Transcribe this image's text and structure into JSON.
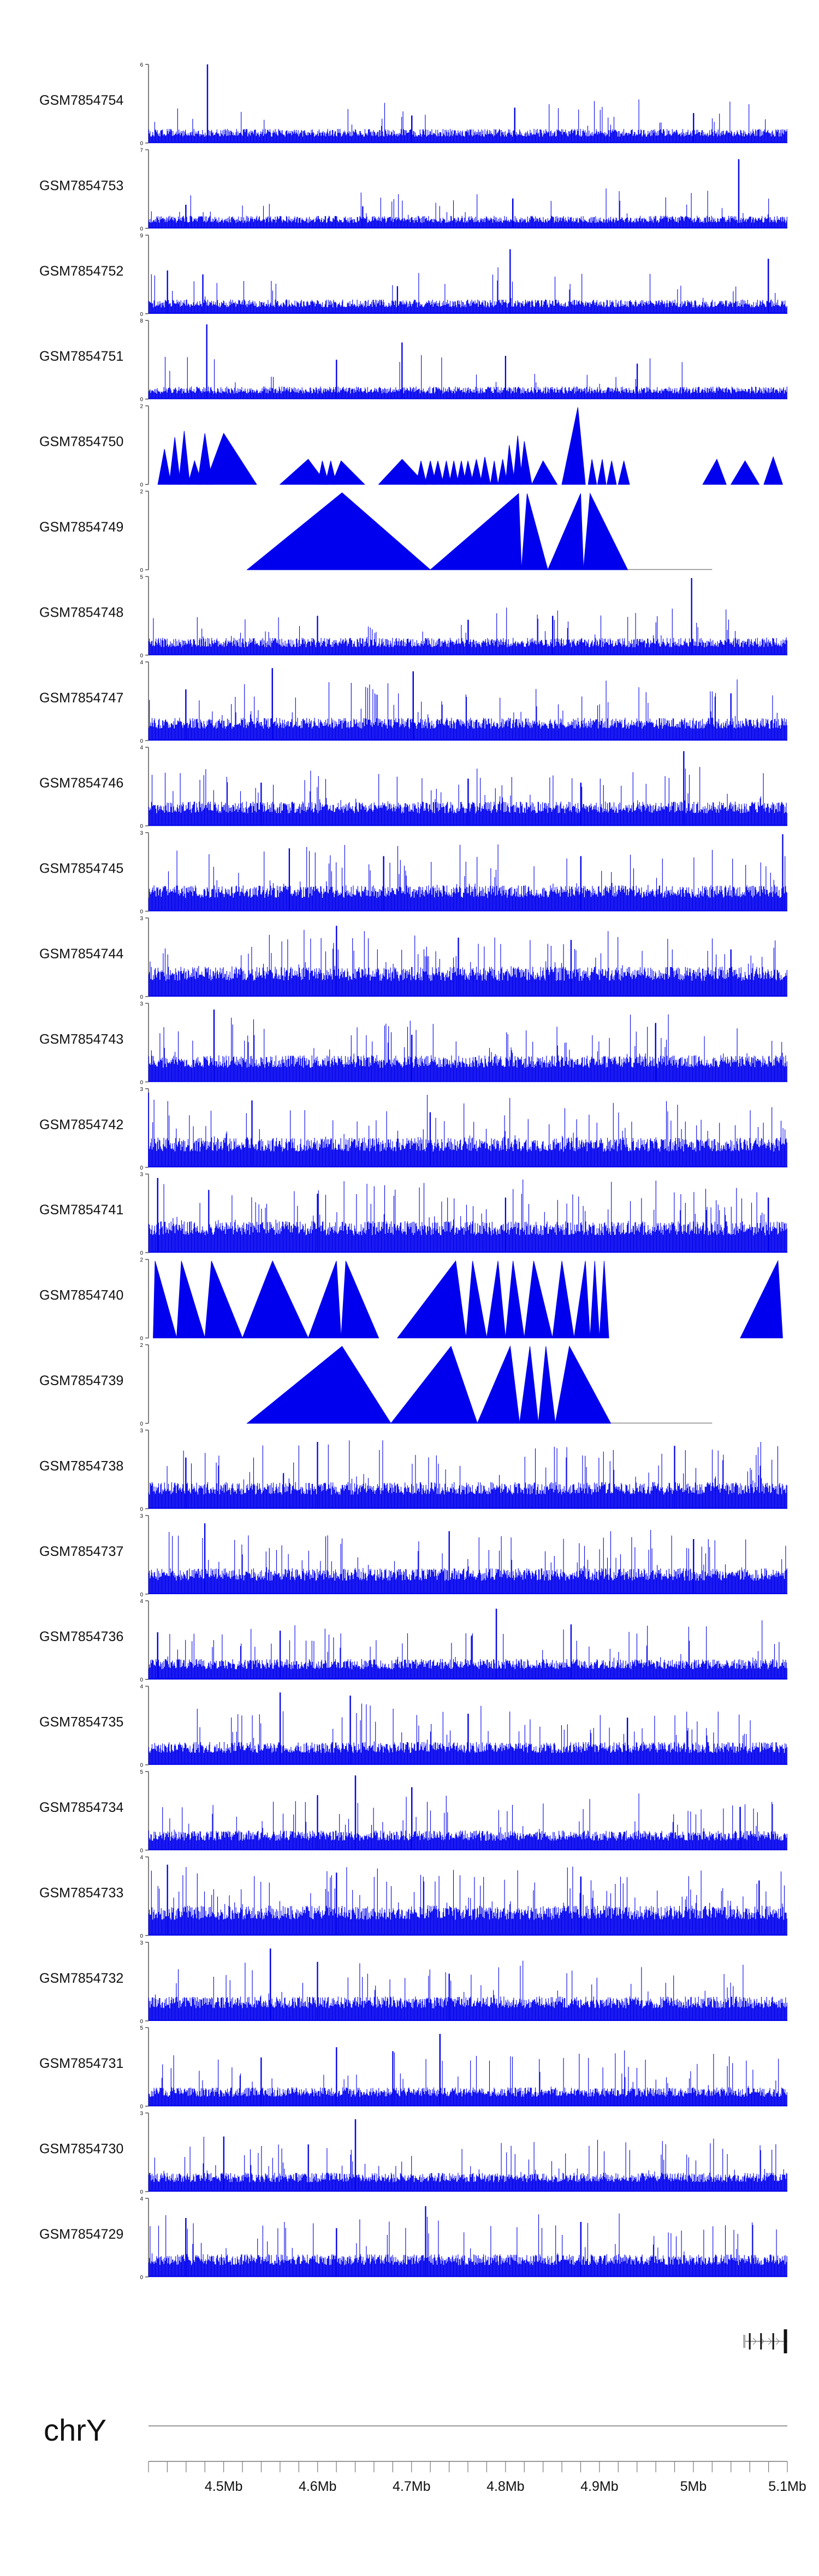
{
  "chart_data": {
    "type": "area",
    "chromosome": "chrY",
    "series_color": "#0000ee",
    "x_axis": {
      "range_bp": [
        4420000,
        5100000
      ],
      "ticks_bp": [
        4420000,
        4440000,
        4460000,
        4480000,
        4500000,
        4520000,
        4540000,
        4560000,
        4580000,
        4600000,
        4620000,
        4640000,
        4660000,
        4680000,
        4700000,
        4720000,
        4740000,
        4760000,
        4780000,
        4800000,
        4820000,
        4840000,
        4860000,
        4880000,
        4900000,
        4920000,
        4940000,
        4960000,
        4980000,
        5000000,
        5020000,
        5040000,
        5060000,
        5080000,
        5100000
      ],
      "labels": [
        {
          "bp": 4500000,
          "text": "4.5Mb"
        },
        {
          "bp": 4600000,
          "text": "4.6Mb"
        },
        {
          "bp": 4700000,
          "text": "4.7Mb"
        },
        {
          "bp": 4800000,
          "text": "4.8Mb"
        },
        {
          "bp": 4900000,
          "text": "4.9Mb"
        },
        {
          "bp": 5000000,
          "text": "5Mb"
        },
        {
          "bp": 5100000,
          "text": "5.1Mb"
        }
      ]
    },
    "tracks": [
      {
        "name": "GSM7854754",
        "kind": "dense",
        "ymax": 6,
        "ymin": 0,
        "base": 0.08,
        "noise": 0.1,
        "spike_prob": 0.035,
        "spike_scale": 0.45,
        "seed": 11,
        "peaks": [
          [
            4483000,
            1.0
          ],
          [
            4810000,
            0.45
          ],
          [
            5000000,
            0.38
          ],
          [
            4700000,
            0.35
          ]
        ]
      },
      {
        "name": "GSM7854753",
        "kind": "dense",
        "ymax": 7,
        "ymin": 0,
        "base": 0.07,
        "noise": 0.09,
        "spike_prob": 0.03,
        "spike_scale": 0.4,
        "seed": 12,
        "peaks": [
          [
            5048000,
            0.88
          ],
          [
            4808000,
            0.38
          ],
          [
            4460000,
            0.3
          ],
          [
            4648000,
            0.28
          ]
        ]
      },
      {
        "name": "GSM7854752",
        "kind": "dense",
        "ymax": 9,
        "ymin": 0,
        "base": 0.08,
        "noise": 0.1,
        "spike_prob": 0.035,
        "spike_scale": 0.42,
        "seed": 13,
        "peaks": [
          [
            4805000,
            0.82
          ],
          [
            5080000,
            0.7
          ],
          [
            4440000,
            0.55
          ],
          [
            4478000,
            0.5
          ],
          [
            4685000,
            0.35
          ]
        ]
      },
      {
        "name": "GSM7854751",
        "kind": "dense",
        "ymax": 8,
        "ymin": 0,
        "base": 0.07,
        "noise": 0.09,
        "spike_prob": 0.03,
        "spike_scale": 0.45,
        "seed": 14,
        "peaks": [
          [
            4482000,
            0.95
          ],
          [
            4690000,
            0.72
          ],
          [
            4620000,
            0.5
          ],
          [
            4800000,
            0.55
          ],
          [
            4940000,
            0.45
          ]
        ]
      },
      {
        "name": "GSM7854750",
        "kind": "triangles",
        "ymax": 2,
        "ymin": 0,
        "seed": 15,
        "triangles": [
          [
            4430000,
            4437000,
            4444000,
            0.45
          ],
          [
            4442000,
            4448000,
            4454000,
            0.6
          ],
          [
            4452000,
            4458000,
            4464000,
            0.68
          ],
          [
            4462000,
            4469000,
            4477000,
            0.3
          ],
          [
            4472000,
            4480000,
            4488000,
            0.65
          ],
          [
            4480000,
            4500000,
            4535000,
            0.65
          ],
          [
            4560000,
            4590000,
            4610000,
            0.32
          ],
          [
            4600000,
            4605000,
            4612000,
            0.3
          ],
          [
            4608000,
            4614000,
            4620000,
            0.3
          ],
          [
            4615000,
            4625000,
            4650000,
            0.3
          ],
          [
            4665000,
            4690000,
            4715000,
            0.32
          ],
          [
            4705000,
            4710000,
            4716000,
            0.3
          ],
          [
            4714000,
            4720000,
            4726000,
            0.3
          ],
          [
            4722000,
            4728000,
            4734000,
            0.3
          ],
          [
            4732000,
            4737000,
            4742000,
            0.3
          ],
          [
            4740000,
            4745000,
            4750000,
            0.3
          ],
          [
            4748000,
            4753000,
            4758000,
            0.3
          ],
          [
            4755000,
            4760000,
            4766000,
            0.3
          ],
          [
            4763000,
            4769000,
            4775000,
            0.32
          ],
          [
            4773000,
            4778000,
            4784000,
            0.35
          ],
          [
            4784000,
            4788000,
            4792000,
            0.3
          ],
          [
            4792000,
            4797000,
            4802000,
            0.32
          ],
          [
            4800000,
            4804000,
            4810000,
            0.5
          ],
          [
            4808000,
            4813000,
            4818000,
            0.62
          ],
          [
            4815000,
            4820000,
            4828000,
            0.55
          ],
          [
            4828000,
            4840000,
            4855000,
            0.3
          ],
          [
            4860000,
            4877000,
            4885000,
            0.98
          ],
          [
            4888000,
            4892000,
            4897000,
            0.32
          ],
          [
            4898000,
            4903000,
            4907000,
            0.32
          ],
          [
            4908000,
            4913000,
            4918000,
            0.3
          ],
          [
            4920000,
            4926000,
            4932000,
            0.3
          ],
          [
            5010000,
            5025000,
            5035000,
            0.32
          ],
          [
            5040000,
            5055000,
            5070000,
            0.3
          ],
          [
            5075000,
            5085000,
            5095000,
            0.35
          ]
        ]
      },
      {
        "name": "GSM7854749",
        "kind": "triangles",
        "ymax": 2,
        "ymin": 0,
        "seed": 16,
        "triangles": [
          [
            4525000,
            4626000,
            4720000,
            0.98
          ],
          [
            4720000,
            4814000,
            4817000,
            0.97
          ],
          [
            4817000,
            4823000,
            4845000,
            0.97
          ],
          [
            4845000,
            4880000,
            4883000,
            0.97
          ],
          [
            4883000,
            4890000,
            4930000,
            0.97
          ]
        ],
        "baseline_range": [
          4525000,
          5020000
        ]
      },
      {
        "name": "GSM7854748",
        "kind": "dense",
        "ymax": 5,
        "ymin": 0,
        "base": 0.1,
        "noise": 0.12,
        "spike_prob": 0.05,
        "spike_scale": 0.4,
        "seed": 17,
        "peaks": [
          [
            4998000,
            0.98
          ],
          [
            4850000,
            0.5
          ],
          [
            4600000,
            0.5
          ],
          [
            4760000,
            0.45
          ]
        ]
      },
      {
        "name": "GSM7854747",
        "kind": "dense",
        "ymax": 4,
        "ymin": 0,
        "base": 0.15,
        "noise": 0.14,
        "spike_prob": 0.07,
        "spike_scale": 0.5,
        "seed": 18,
        "peaks": [
          [
            4552000,
            0.92
          ],
          [
            4702000,
            0.88
          ],
          [
            4460000,
            0.65
          ],
          [
            5040000,
            0.6
          ]
        ]
      },
      {
        "name": "GSM7854746",
        "kind": "dense",
        "ymax": 4,
        "ymin": 0,
        "base": 0.16,
        "noise": 0.15,
        "spike_prob": 0.07,
        "spike_scale": 0.5,
        "seed": 19,
        "peaks": [
          [
            4990000,
            0.95
          ],
          [
            4760000,
            0.6
          ],
          [
            4540000,
            0.55
          ],
          [
            4880000,
            0.55
          ]
        ]
      },
      {
        "name": "GSM7854745",
        "kind": "dense",
        "ymax": 3,
        "ymin": 0,
        "base": 0.17,
        "noise": 0.16,
        "spike_prob": 0.08,
        "spike_scale": 0.55,
        "seed": 20,
        "peaks": [
          [
            5095000,
            0.98
          ],
          [
            4570000,
            0.8
          ],
          [
            4670000,
            0.7
          ],
          [
            4880000,
            0.7
          ]
        ]
      },
      {
        "name": "GSM7854744",
        "kind": "dense",
        "ymax": 3,
        "ymin": 0,
        "base": 0.2,
        "noise": 0.18,
        "spike_prob": 0.09,
        "spike_scale": 0.55,
        "seed": 21,
        "peaks": [
          [
            4620000,
            0.9
          ],
          [
            4750000,
            0.75
          ],
          [
            4870000,
            0.72
          ],
          [
            5040000,
            0.6
          ]
        ]
      },
      {
        "name": "GSM7854743",
        "kind": "dense",
        "ymax": 3,
        "ymin": 0,
        "base": 0.18,
        "noise": 0.16,
        "spike_prob": 0.08,
        "spike_scale": 0.55,
        "seed": 22,
        "peaks": [
          [
            4490000,
            0.92
          ],
          [
            4960000,
            0.75
          ],
          [
            4700000,
            0.6
          ]
        ]
      },
      {
        "name": "GSM7854742",
        "kind": "dense",
        "ymax": 3,
        "ymin": 0,
        "base": 0.2,
        "noise": 0.18,
        "spike_prob": 0.1,
        "spike_scale": 0.55,
        "seed": 23,
        "peaks": [
          [
            4420000,
            0.95
          ],
          [
            4530000,
            0.85
          ],
          [
            4720000,
            0.7
          ]
        ]
      },
      {
        "name": "GSM7854741",
        "kind": "dense",
        "ymax": 3,
        "ymin": 0,
        "base": 0.22,
        "noise": 0.18,
        "spike_prob": 0.12,
        "spike_scale": 0.55,
        "seed": 24,
        "peaks": [
          [
            4430000,
            0.95
          ],
          [
            4600000,
            0.75
          ],
          [
            4800000,
            0.7
          ],
          [
            5080000,
            0.7
          ]
        ]
      },
      {
        "name": "GSM7854740",
        "kind": "triangles",
        "ymax": 2,
        "ymin": 0,
        "seed": 25,
        "triangles": [
          [
            4425000,
            4427000,
            4450000,
            0.98
          ],
          [
            4450000,
            4455000,
            4480000,
            0.98
          ],
          [
            4480000,
            4487000,
            4520000,
            0.98
          ],
          [
            4520000,
            4552000,
            4590000,
            0.98
          ],
          [
            4590000,
            4620000,
            4625000,
            0.98
          ],
          [
            4625000,
            4630000,
            4665000,
            0.98
          ],
          [
            4685000,
            4747000,
            4758000,
            0.98
          ],
          [
            4758000,
            4765000,
            4780000,
            0.98
          ],
          [
            4780000,
            4792000,
            4800000,
            0.98
          ],
          [
            4800000,
            4808000,
            4820000,
            0.98
          ],
          [
            4820000,
            4830000,
            4850000,
            0.98
          ],
          [
            4850000,
            4860000,
            4873000,
            0.98
          ],
          [
            4873000,
            4885000,
            4890000,
            0.98
          ],
          [
            4890000,
            4895000,
            4900000,
            0.98
          ],
          [
            4900000,
            4905000,
            4910000,
            0.98
          ],
          [
            5050000,
            5090000,
            5095000,
            0.98
          ]
        ]
      },
      {
        "name": "GSM7854739",
        "kind": "triangles",
        "ymax": 2,
        "ymin": 0,
        "seed": 26,
        "triangles": [
          [
            4525000,
            4626000,
            4678000,
            0.98
          ],
          [
            4678000,
            4742000,
            4770000,
            0.98
          ],
          [
            4770000,
            4805000,
            4815000,
            0.98
          ],
          [
            4815000,
            4826000,
            4835000,
            0.98
          ],
          [
            4835000,
            4843000,
            4853000,
            0.98
          ],
          [
            4853000,
            4868000,
            4912000,
            0.98
          ]
        ],
        "baseline_range": [
          4525000,
          5020000
        ]
      },
      {
        "name": "GSM7854738",
        "kind": "dense",
        "ymax": 3,
        "ymin": 0,
        "base": 0.18,
        "noise": 0.16,
        "spike_prob": 0.09,
        "spike_scale": 0.55,
        "seed": 27,
        "peaks": [
          [
            4600000,
            0.85
          ],
          [
            4980000,
            0.8
          ],
          [
            4460000,
            0.65
          ]
        ]
      },
      {
        "name": "GSM7854737",
        "kind": "dense",
        "ymax": 3,
        "ymin": 0,
        "base": 0.17,
        "noise": 0.16,
        "spike_prob": 0.09,
        "spike_scale": 0.55,
        "seed": 28,
        "peaks": [
          [
            4480000,
            0.9
          ],
          [
            4740000,
            0.8
          ],
          [
            5000000,
            0.7
          ]
        ]
      },
      {
        "name": "GSM7854736",
        "kind": "dense",
        "ymax": 4,
        "ymin": 0,
        "base": 0.13,
        "noise": 0.13,
        "spike_prob": 0.07,
        "spike_scale": 0.5,
        "seed": 29,
        "peaks": [
          [
            4790000,
            0.9
          ],
          [
            4870000,
            0.7
          ],
          [
            4560000,
            0.62
          ],
          [
            4430000,
            0.6
          ]
        ]
      },
      {
        "name": "GSM7854735",
        "kind": "dense",
        "ymax": 4,
        "ymin": 0,
        "base": 0.15,
        "noise": 0.14,
        "spike_prob": 0.08,
        "spike_scale": 0.5,
        "seed": 30,
        "peaks": [
          [
            4560000,
            0.92
          ],
          [
            4635000,
            0.88
          ],
          [
            4760000,
            0.65
          ],
          [
            4930000,
            0.6
          ]
        ]
      },
      {
        "name": "GSM7854734",
        "kind": "dense",
        "ymax": 5,
        "ymin": 0,
        "base": 0.12,
        "noise": 0.13,
        "spike_prob": 0.07,
        "spike_scale": 0.5,
        "seed": 31,
        "peaks": [
          [
            4640000,
            0.95
          ],
          [
            4700000,
            0.8
          ],
          [
            4600000,
            0.7
          ],
          [
            5050000,
            0.55
          ]
        ]
      },
      {
        "name": "GSM7854733",
        "kind": "dense",
        "ymax": 4,
        "ymin": 0,
        "base": 0.2,
        "noise": 0.18,
        "spike_prob": 0.1,
        "spike_scale": 0.55,
        "seed": 32,
        "peaks": [
          [
            4440000,
            0.9
          ],
          [
            4620000,
            0.8
          ],
          [
            4880000,
            0.75
          ],
          [
            5070000,
            0.7
          ]
        ]
      },
      {
        "name": "GSM7854732",
        "kind": "dense",
        "ymax": 3,
        "ymin": 0,
        "base": 0.16,
        "noise": 0.15,
        "spike_prob": 0.08,
        "spike_scale": 0.5,
        "seed": 33,
        "peaks": [
          [
            4550000,
            0.92
          ],
          [
            4600000,
            0.75
          ],
          [
            4740000,
            0.6
          ]
        ]
      },
      {
        "name": "GSM7854731",
        "kind": "dense",
        "ymax": 5,
        "ymin": 0,
        "base": 0.12,
        "noise": 0.12,
        "spike_prob": 0.07,
        "spike_scale": 0.5,
        "seed": 34,
        "peaks": [
          [
            4730000,
            0.92
          ],
          [
            4620000,
            0.75
          ],
          [
            4680000,
            0.7
          ],
          [
            4540000,
            0.62
          ]
        ]
      },
      {
        "name": "GSM7854730",
        "kind": "dense",
        "ymax": 3,
        "ymin": 0,
        "base": 0.12,
        "noise": 0.12,
        "spike_prob": 0.06,
        "spike_scale": 0.5,
        "seed": 35,
        "peaks": [
          [
            4640000,
            0.92
          ],
          [
            4500000,
            0.7
          ],
          [
            4590000,
            0.6
          ]
        ]
      },
      {
        "name": "GSM7854729",
        "kind": "dense",
        "ymax": 4,
        "ymin": 0,
        "base": 0.15,
        "noise": 0.14,
        "spike_prob": 0.07,
        "spike_scale": 0.55,
        "seed": 36,
        "peaks": [
          [
            4715000,
            0.9
          ],
          [
            4460000,
            0.75
          ],
          [
            4880000,
            0.7
          ],
          [
            4620000,
            0.62
          ]
        ]
      }
    ],
    "gene_track": {
      "color": "#000000",
      "features": [
        {
          "start": 5060000,
          "end": 5100000,
          "strand": "+",
          "exons": [
            5060000,
            5072000,
            5085000,
            5098000
          ]
        }
      ]
    }
  }
}
